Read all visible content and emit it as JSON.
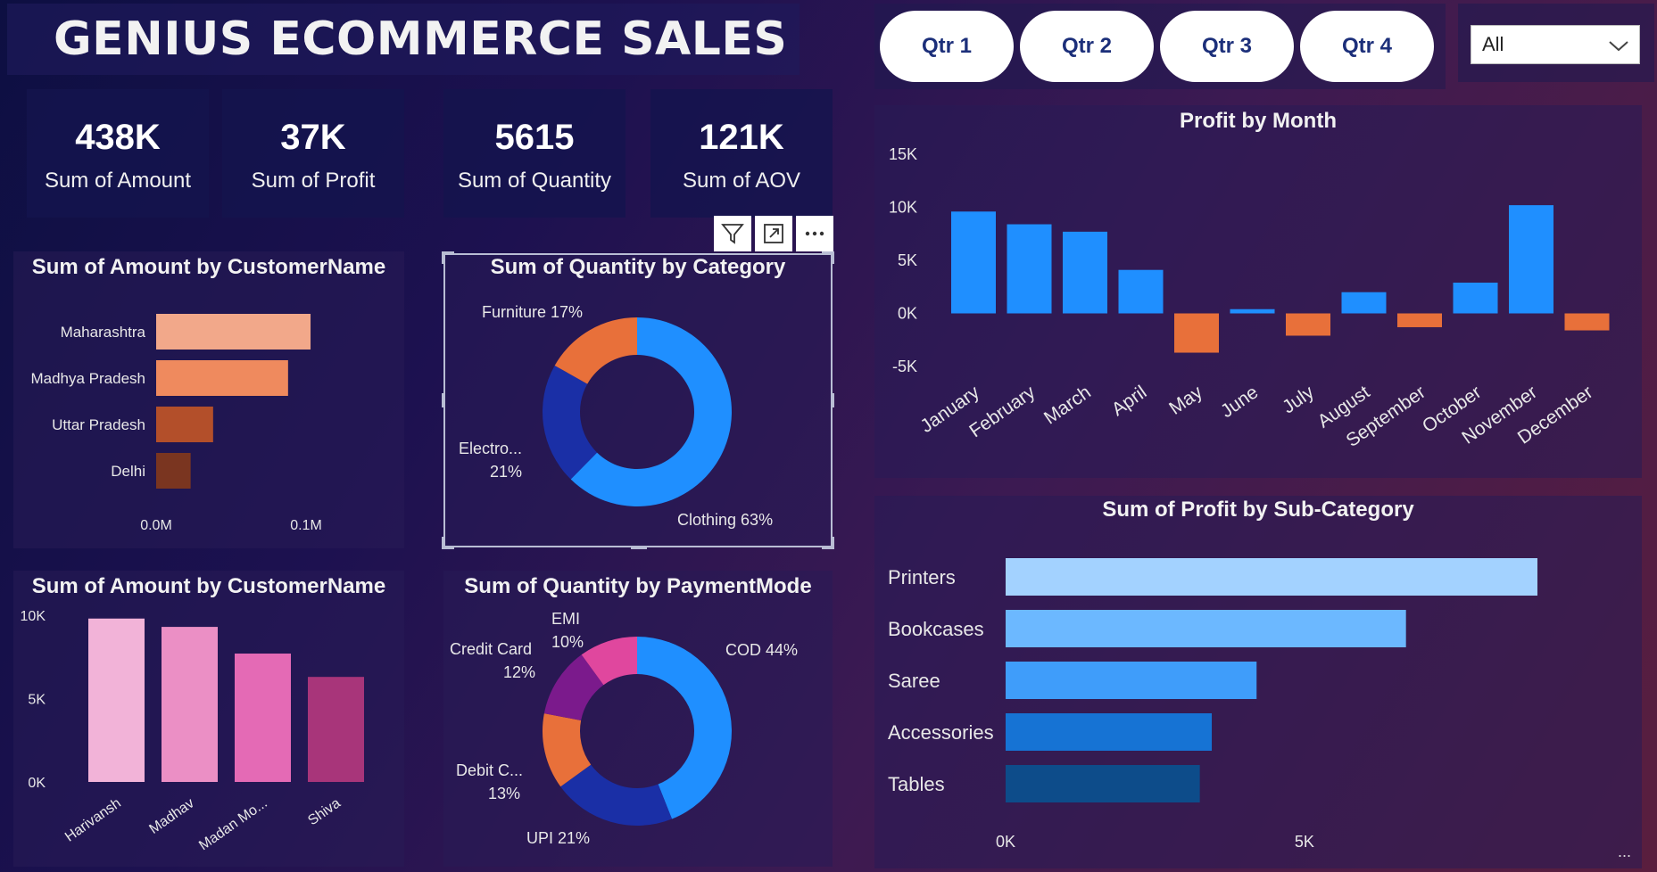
{
  "header": {
    "title": "GENIUS ECOMMERCE SALES"
  },
  "quarters": [
    "Qtr 1",
    "Qtr 2",
    "Qtr 3",
    "Qtr 4"
  ],
  "slicer": {
    "value": "All",
    "icon": "chevron-down-icon"
  },
  "kpis": [
    {
      "value": "438K",
      "label": "Sum of Amount"
    },
    {
      "value": "37K",
      "label": "Sum of Profit"
    },
    {
      "value": "5615",
      "label": "Sum of Quantity"
    },
    {
      "value": "121K",
      "label": "Sum of AOV"
    }
  ],
  "toolbar": {
    "icons": [
      "filter-icon",
      "focus-mode-icon",
      "more-options-icon"
    ]
  },
  "more_label": "...",
  "colors": {
    "blue": "#1f8fff",
    "orange": "#e8703a",
    "navy": "#1a2fa6",
    "purple": "#7b1a8c",
    "pink": "#e0479e"
  },
  "chart_data": [
    {
      "id": "amount_by_state",
      "type": "bar",
      "orientation": "horizontal",
      "title": "Sum of Amount by CustomerName",
      "categories": [
        "Maharashtra",
        "Madhya Pradesh",
        "Uttar Pradesh",
        "Delhi"
      ],
      "values": [
        0.103,
        0.088,
        0.038,
        0.023
      ],
      "xlim": [
        0,
        0.15
      ],
      "ticks": [
        "0.0M",
        "0.1M"
      ],
      "tick_values": [
        0,
        0.1
      ],
      "colors": [
        "#f2a88a",
        "#ef8a5e",
        "#b34f2a",
        "#7a3520"
      ]
    },
    {
      "id": "quantity_by_category",
      "type": "pie",
      "donut": true,
      "title": "Sum of Quantity by Category",
      "slices": [
        {
          "name": "Clothing",
          "value": 63,
          "label": "Clothing 63%",
          "color": "#1f8fff"
        },
        {
          "name": "Electro...",
          "value": 21,
          "label": "Electro...",
          "label2": "21%",
          "color": "#1a2fa6"
        },
        {
          "name": "Furniture",
          "value": 17,
          "label": "Furniture 17%",
          "color": "#e8703a"
        }
      ]
    },
    {
      "id": "amount_by_customer",
      "type": "bar",
      "title": "Sum of Amount by CustomerName",
      "categories": [
        "Harivansh",
        "Madhav",
        "Madan Mo...",
        "Shiva"
      ],
      "values": [
        9800,
        9300,
        7700,
        6300
      ],
      "ylim": [
        0,
        10000
      ],
      "ticks": [
        "0K",
        "5K",
        "10K"
      ],
      "tick_values": [
        0,
        5000,
        10000
      ],
      "colors": [
        "#f2b3d8",
        "#eb8fc5",
        "#e46ab5",
        "#a8357a"
      ]
    },
    {
      "id": "quantity_by_payment",
      "type": "pie",
      "donut": true,
      "title": "Sum of Quantity by PaymentMode",
      "slices": [
        {
          "name": "COD",
          "value": 44,
          "label": "COD 44%",
          "color": "#1f8fff"
        },
        {
          "name": "UPI",
          "value": 21,
          "label": "UPI 21%",
          "color": "#1a2fa6"
        },
        {
          "name": "Debit C...",
          "value": 13,
          "label": "Debit C...",
          "label2": "13%",
          "color": "#e8703a"
        },
        {
          "name": "Credit Card",
          "value": 12,
          "label": "Credit Card",
          "label2": "12%",
          "color": "#7b1a8c"
        },
        {
          "name": "EMI",
          "value": 10,
          "label": "EMI",
          "label2": "10%",
          "color": "#e0479e"
        }
      ]
    },
    {
      "id": "profit_by_month",
      "type": "bar",
      "title": "Profit by Month",
      "categories": [
        "January",
        "February",
        "March",
        "April",
        "May",
        "June",
        "July",
        "August",
        "September",
        "October",
        "November",
        "December"
      ],
      "values": [
        9600,
        8400,
        7700,
        4100,
        -3700,
        400,
        -2100,
        2000,
        -1300,
        2900,
        10200,
        -1600
      ],
      "ylim": [
        -5000,
        15000
      ],
      "ticks": [
        "-5K",
        "0K",
        "5K",
        "10K",
        "15K"
      ],
      "tick_values": [
        -5000,
        0,
        5000,
        10000,
        15000
      ],
      "positive_color": "#1f8fff",
      "negative_color": "#e8703a"
    },
    {
      "id": "profit_by_subcategory",
      "type": "bar",
      "orientation": "horizontal",
      "title": "Sum of Profit by Sub-Category",
      "categories": [
        "Printers",
        "Bookcases",
        "Saree",
        "Accessories",
        "Tables"
      ],
      "values": [
        8900,
        6700,
        4200,
        3450,
        3250
      ],
      "xlim": [
        0,
        9500
      ],
      "ticks": [
        "0K",
        "5K"
      ],
      "tick_values": [
        0,
        5000
      ],
      "colors": [
        "#a3d2ff",
        "#6cb8ff",
        "#3f9dfa",
        "#1673d4",
        "#0d4c8a"
      ]
    }
  ]
}
